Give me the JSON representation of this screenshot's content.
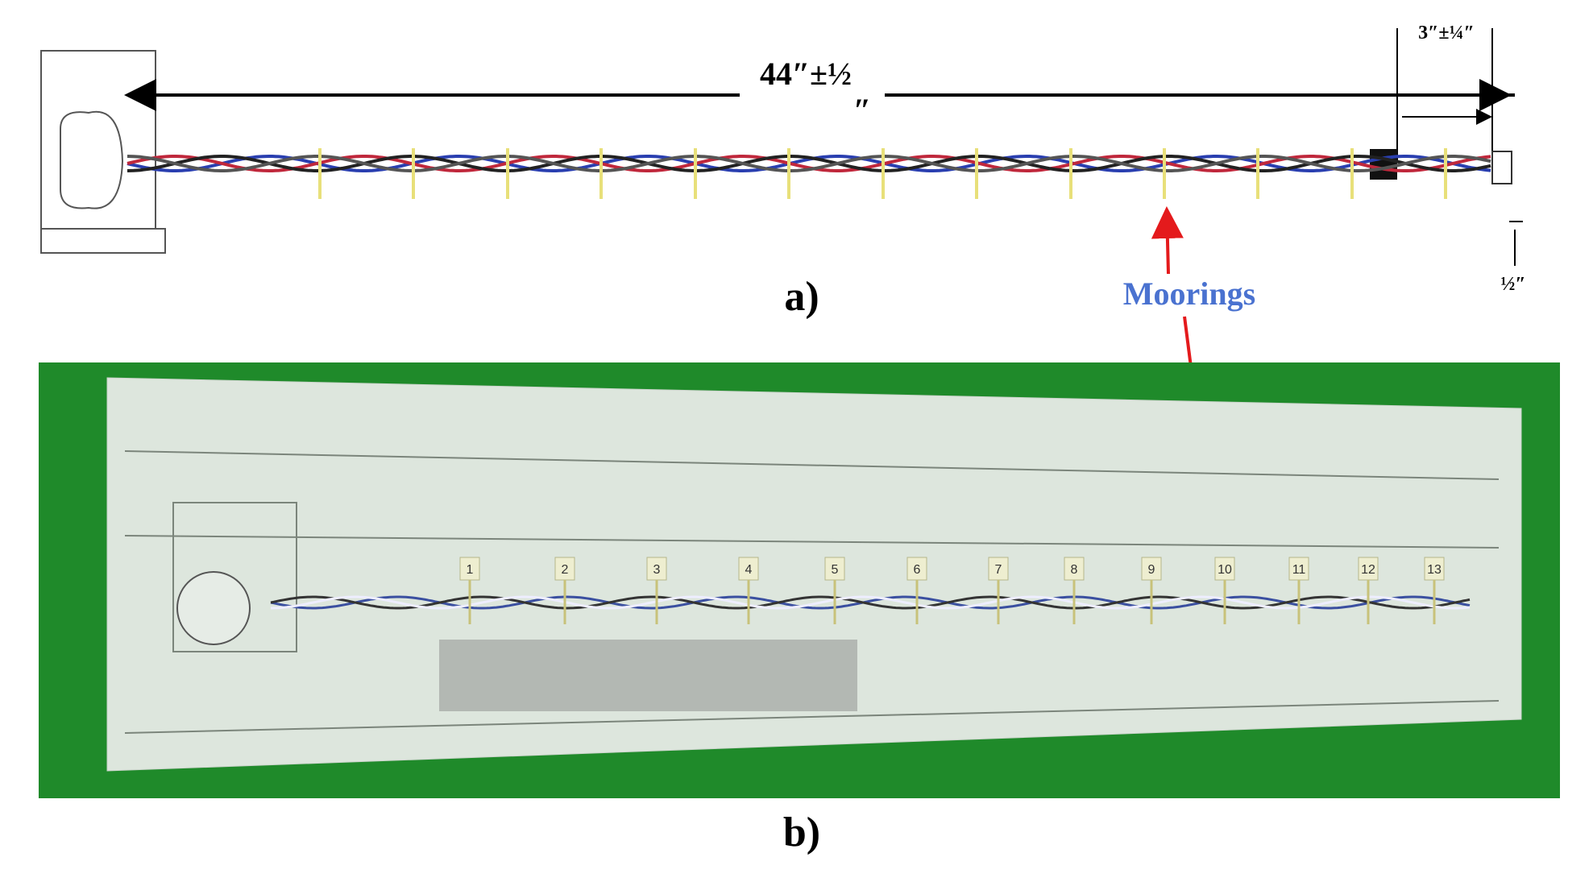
{
  "panel_a": {
    "dimension_total": {
      "label": "44″±½",
      "suffix": "″"
    },
    "dimension_end": {
      "label": "3″±¼″"
    },
    "dimension_small": {
      "label": "½″"
    },
    "caption": "a)"
  },
  "annotation": {
    "label": "Moorings"
  },
  "panel_b": {
    "mooring_numbers": [
      "1",
      "2",
      "3",
      "4",
      "5",
      "6",
      "7",
      "8",
      "9",
      "10",
      "11",
      "12",
      "13"
    ],
    "caption": "b)"
  }
}
